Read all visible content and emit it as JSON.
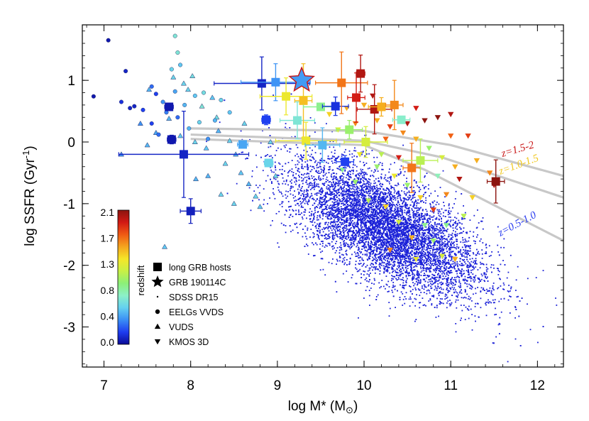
{
  "chart_data": {
    "type": "scatter",
    "title": "",
    "xlabel": "log M* (M",
    "xlabel_sub": "⊙",
    "xlabel_end": ")",
    "ylabel": "log SSFR (Gyr",
    "ylabel_sup": "-1",
    "ylabel_end": ")",
    "xlim": [
      6.75,
      12.3
    ],
    "ylim": [
      -3.65,
      1.9
    ],
    "xticks": [
      "7",
      "8",
      "9",
      "10",
      "11",
      "12"
    ],
    "yticks": [
      "-3",
      "-2",
      "-1",
      "0",
      "1"
    ],
    "grid": false,
    "colorbar": {
      "label": "redshift",
      "ticks": [
        "0.0",
        "0.4",
        "0.8",
        "1.3",
        "1.7",
        "2.1"
      ],
      "range": [
        0.0,
        2.1
      ],
      "colors": [
        "#0b0b96",
        "#1e3cf0",
        "#3a8ef5",
        "#64d0f0",
        "#8cf0c8",
        "#8cf078",
        "#c8f046",
        "#f5e628",
        "#f5a51e",
        "#f05a14",
        "#d21914",
        "#8c140f"
      ]
    },
    "legend": {
      "position": "bottom-left",
      "entries": [
        {
          "label": "long GRB hosts",
          "marker": "square"
        },
        {
          "label": "GRB 190114C",
          "marker": "star"
        },
        {
          "label": "SDSS DR15",
          "marker": "dot"
        },
        {
          "label": "EELGs VVDS",
          "marker": "circle"
        },
        {
          "label": "VUDS",
          "marker": "triangle-up"
        },
        {
          "label": "KMOS 3D",
          "marker": "triangle-down"
        }
      ]
    },
    "series": [
      {
        "name": "long GRB hosts",
        "marker": "square",
        "points": [
          {
            "x": 7.75,
            "y": 0.57,
            "z": 0.05,
            "xerr": 0.05,
            "yerr": 0.0
          },
          {
            "x": 7.78,
            "y": 0.04,
            "z": 0.05,
            "xerr": 0.05,
            "yerr": 0.07
          },
          {
            "x": 7.92,
            "y": -0.2,
            "z": 0.1,
            "xerr": 0.75,
            "yerr": 0.7
          },
          {
            "x": 8.0,
            "y": -1.12,
            "z": 0.08,
            "xerr": 0.12,
            "yerr": 0.2
          },
          {
            "x": 8.6,
            "y": -0.04,
            "z": 0.45,
            "xerr": 0.06,
            "yerr": 0.0
          },
          {
            "x": 8.82,
            "y": 0.95,
            "z": 0.1,
            "xerr": 0.55,
            "yerr": 0.43
          },
          {
            "x": 8.87,
            "y": 0.36,
            "z": 0.2,
            "xerr": 0.05,
            "yerr": 0.08
          },
          {
            "x": 8.98,
            "y": 0.97,
            "z": 0.4,
            "xerr": 0.4,
            "yerr": 0.3
          },
          {
            "x": 8.9,
            "y": -0.34,
            "z": 0.6,
            "xerr": 0.05,
            "yerr": 0.0
          },
          {
            "x": 9.23,
            "y": 0.35,
            "z": 0.7,
            "xerr": 0.2,
            "yerr": 0.3
          },
          {
            "x": 9.1,
            "y": 0.74,
            "z": 1.3,
            "xerr": 0.3,
            "yerr": 0.3
          },
          {
            "x": 9.3,
            "y": 0.67,
            "z": 1.45,
            "xerr": 0.1,
            "yerr": 0.6
          },
          {
            "x": 9.33,
            "y": 0.02,
            "z": 1.3,
            "xerr": 0.35,
            "yerr": 0.3
          },
          {
            "x": 9.5,
            "y": 0.57,
            "z": 0.9,
            "xerr": 0.2,
            "yerr": 0.0
          },
          {
            "x": 9.52,
            "y": -0.05,
            "z": 0.5,
            "xerr": 0.2,
            "yerr": 0.28
          },
          {
            "x": 9.67,
            "y": 0.58,
            "z": 0.15,
            "xerr": 0.15,
            "yerr": 0.15
          },
          {
            "x": 9.78,
            "y": -0.32,
            "z": 0.2,
            "xerr": 0.1,
            "yerr": 0.1
          },
          {
            "x": 9.74,
            "y": 0.96,
            "z": 1.65,
            "xerr": 0.3,
            "yerr": 0.5
          },
          {
            "x": 9.83,
            "y": 0.2,
            "z": 1.0,
            "xerr": 0.15,
            "yerr": 0.15
          },
          {
            "x": 9.91,
            "y": 0.72,
            "z": 1.9,
            "xerr": 0.1,
            "yerr": 0.4
          },
          {
            "x": 9.96,
            "y": 1.11,
            "z": 2.0,
            "xerr": 0.05,
            "yerr": 0.3
          },
          {
            "x": 10.02,
            "y": 0.0,
            "z": 1.2,
            "xerr": 0.25,
            "yerr": 0.25
          },
          {
            "x": 10.12,
            "y": 0.53,
            "z": 2.0,
            "xerr": 0.2,
            "yerr": 0.4
          },
          {
            "x": 10.2,
            "y": 0.57,
            "z": 1.5,
            "xerr": 0.15,
            "yerr": 0.15
          },
          {
            "x": 10.35,
            "y": 0.6,
            "z": 1.6,
            "xerr": 0.1,
            "yerr": 0.4
          },
          {
            "x": 10.43,
            "y": 0.36,
            "z": 0.75,
            "xerr": 0.1,
            "yerr": 0.0
          },
          {
            "x": 10.55,
            "y": -0.42,
            "z": 1.65,
            "xerr": 0.1,
            "yerr": 0.4
          },
          {
            "x": 10.65,
            "y": -0.3,
            "z": 1.1,
            "xerr": 0.2,
            "yerr": 0.35
          },
          {
            "x": 11.52,
            "y": -0.64,
            "z": 2.1,
            "xerr": 0.1,
            "yerr": 0.35
          }
        ]
      },
      {
        "name": "GRB 190114C",
        "marker": "star",
        "points": [
          {
            "x": 9.28,
            "y": 1.0,
            "z": 0.42
          }
        ]
      },
      {
        "name": "EELGs VVDS",
        "marker": "circle",
        "points": [
          [
            7.05,
            1.65,
            0.05
          ],
          [
            6.88,
            0.74,
            0.05
          ],
          [
            7.2,
            0.65,
            0.15
          ],
          [
            7.3,
            0.55,
            0.1
          ],
          [
            7.45,
            0.52,
            0.2
          ],
          [
            7.25,
            1.15,
            0.1
          ],
          [
            7.55,
            0.9,
            0.3
          ],
          [
            7.6,
            0.78,
            0.2
          ],
          [
            7.35,
            0.58,
            0.1
          ],
          [
            7.68,
            0.65,
            0.4
          ],
          [
            7.72,
            0.48,
            0.35
          ],
          [
            7.82,
            0.82,
            0.45
          ],
          [
            7.85,
            0.4,
            0.3
          ],
          [
            7.93,
            0.6,
            0.5
          ],
          [
            7.78,
            1.18,
            0.6
          ],
          [
            7.88,
            1.25,
            0.55
          ],
          [
            7.85,
            1.45,
            0.7
          ],
          [
            7.82,
            1.72,
            0.7
          ],
          [
            8.05,
            0.75,
            0.55
          ],
          [
            8.1,
            0.32,
            0.6
          ],
          [
            8.15,
            0.8,
            0.65
          ],
          [
            8.35,
            0.68,
            0.6
          ],
          [
            7.63,
            0.12,
            0.3
          ],
          [
            8.28,
            0.35,
            0.5
          ],
          [
            7.98,
            0.22,
            0.5
          ],
          [
            8.45,
            0.48,
            0.55
          ],
          [
            8.2,
            0.05,
            0.4
          ],
          [
            7.55,
            0.3,
            0.2
          ]
        ]
      },
      {
        "name": "VUDS",
        "marker": "triangle-up",
        "points": [
          [
            7.42,
            0.3,
            0.4
          ],
          [
            7.6,
            0.15,
            0.45
          ],
          [
            7.52,
            0.85,
            0.5
          ],
          [
            7.8,
            1.05,
            0.6
          ],
          [
            7.92,
            0.95,
            0.6
          ],
          [
            8.02,
            1.07,
            0.65
          ],
          [
            7.97,
            0.85,
            0.6
          ],
          [
            8.13,
            0.58,
            0.7
          ],
          [
            8.25,
            0.72,
            0.55
          ],
          [
            7.75,
            0.38,
            0.5
          ],
          [
            7.88,
            0.1,
            0.55
          ],
          [
            8.05,
            0.0,
            0.6
          ],
          [
            8.18,
            -0.1,
            0.55
          ],
          [
            8.32,
            0.18,
            0.5
          ],
          [
            8.45,
            0.02,
            0.6
          ],
          [
            8.52,
            -0.2,
            0.5
          ],
          [
            8.4,
            -0.35,
            0.6
          ],
          [
            8.58,
            -0.5,
            0.55
          ],
          [
            8.75,
            -0.88,
            0.6
          ],
          [
            8.8,
            -1.05,
            0.55
          ],
          [
            8.67,
            -0.68,
            0.5
          ],
          [
            8.5,
            -1.0,
            0.6
          ],
          [
            7.7,
            -1.7,
            0.55
          ],
          [
            8.06,
            -0.6,
            0.5
          ],
          [
            8.3,
            0.4,
            0.65
          ],
          [
            8.62,
            0.3,
            0.6
          ],
          [
            8.92,
            0.0,
            0.6
          ],
          [
            8.98,
            -0.55,
            0.6
          ],
          [
            7.2,
            -0.2,
            0.4
          ],
          [
            7.5,
            -0.05,
            0.5
          ],
          [
            8.2,
            -0.55,
            0.5
          ],
          [
            8.35,
            -0.85,
            0.6
          ]
        ]
      },
      {
        "name": "KMOS 3D",
        "marker": "triangle-down",
        "points": [
          [
            9.6,
            0.45,
            1.4
          ],
          [
            9.8,
            0.55,
            1.5
          ],
          [
            10.0,
            0.6,
            1.5
          ],
          [
            10.15,
            0.35,
            1.5
          ],
          [
            10.3,
            0.25,
            1.8
          ],
          [
            10.5,
            0.3,
            2.0
          ],
          [
            10.7,
            0.35,
            2.1
          ],
          [
            10.85,
            0.4,
            2.1
          ],
          [
            11.0,
            0.45,
            2.0
          ],
          [
            10.6,
            0.05,
            1.5
          ],
          [
            10.75,
            -0.1,
            1.0
          ],
          [
            10.9,
            -0.25,
            1.2
          ],
          [
            11.05,
            -0.4,
            1.5
          ],
          [
            10.2,
            -0.2,
            1.1
          ],
          [
            10.35,
            -0.55,
            1.3
          ],
          [
            10.5,
            -0.7,
            1.0
          ],
          [
            10.65,
            -0.9,
            1.4
          ],
          [
            10.8,
            -1.1,
            1.8
          ],
          [
            10.95,
            -0.85,
            1.6
          ],
          [
            11.1,
            -0.6,
            2.0
          ],
          [
            11.3,
            -0.3,
            1.5
          ],
          [
            11.45,
            -0.5,
            1.6
          ],
          [
            11.25,
            -0.9,
            1.4
          ],
          [
            11.15,
            -1.2,
            1.1
          ],
          [
            10.4,
            -1.3,
            1.2
          ],
          [
            10.55,
            -1.55,
            1.5
          ],
          [
            10.3,
            -1.75,
            1.6
          ],
          [
            10.6,
            -1.9,
            1.3
          ],
          [
            10.8,
            -1.6,
            1.0
          ],
          [
            10.95,
            -1.35,
            0.9
          ],
          [
            11.05,
            -1.9,
            1.5
          ],
          [
            9.9,
            -0.65,
            1.0
          ],
          [
            9.75,
            -0.45,
            0.9
          ],
          [
            10.05,
            -0.95,
            1.1
          ],
          [
            10.25,
            -1.05,
            1.4
          ],
          [
            9.9,
            0.3,
            1.6
          ],
          [
            10.25,
            0.05,
            1.7
          ],
          [
            10.45,
            0.15,
            1.6
          ],
          [
            10.6,
            0.55,
            1.9
          ],
          [
            10.1,
            0.75,
            2.0
          ],
          [
            11.5,
            -0.7,
            2.0
          ],
          [
            10.85,
            -0.55,
            0.8
          ],
          [
            10.7,
            -1.35,
            0.9
          ],
          [
            9.95,
            -0.2,
            1.3
          ],
          [
            10.15,
            -0.4,
            1.0
          ],
          [
            11.2,
            0.1,
            1.8
          ],
          [
            10.4,
            -0.25,
            1.9
          ],
          [
            9.7,
            0.2,
            1.2
          ],
          [
            11.0,
            0.1,
            1.7
          ],
          [
            10.9,
            -1.85,
            1.2
          ]
        ]
      },
      {
        "name": "SDSS DR15",
        "marker": "dot",
        "note_density": "dense cloud of ~8000 low-z galaxies",
        "cloud": {
          "center_x": 10.25,
          "center_y": -1.4,
          "sx": 0.55,
          "sy": 0.55,
          "tilt": -0.65,
          "count": 7500,
          "z": 0.05
        }
      }
    ],
    "relations": [
      {
        "label": "z=0.5-1.0",
        "color": "#2a3cf0",
        "x": [
          8.0,
          10.0,
          10.7,
          12.3
        ],
        "y": [
          0.05,
          -0.05,
          -0.45,
          -1.6
        ]
      },
      {
        "label": "z=1.0-1.5",
        "color": "#f0c81e",
        "x": [
          8.0,
          10.0,
          10.9,
          12.3
        ],
        "y": [
          0.12,
          0.02,
          -0.25,
          -0.9
        ]
      },
      {
        "label": "z=1.5-2",
        "color": "#c81414",
        "x": [
          8.0,
          10.0,
          11.0,
          12.3
        ],
        "y": [
          0.22,
          0.18,
          -0.05,
          -0.55
        ]
      }
    ]
  }
}
